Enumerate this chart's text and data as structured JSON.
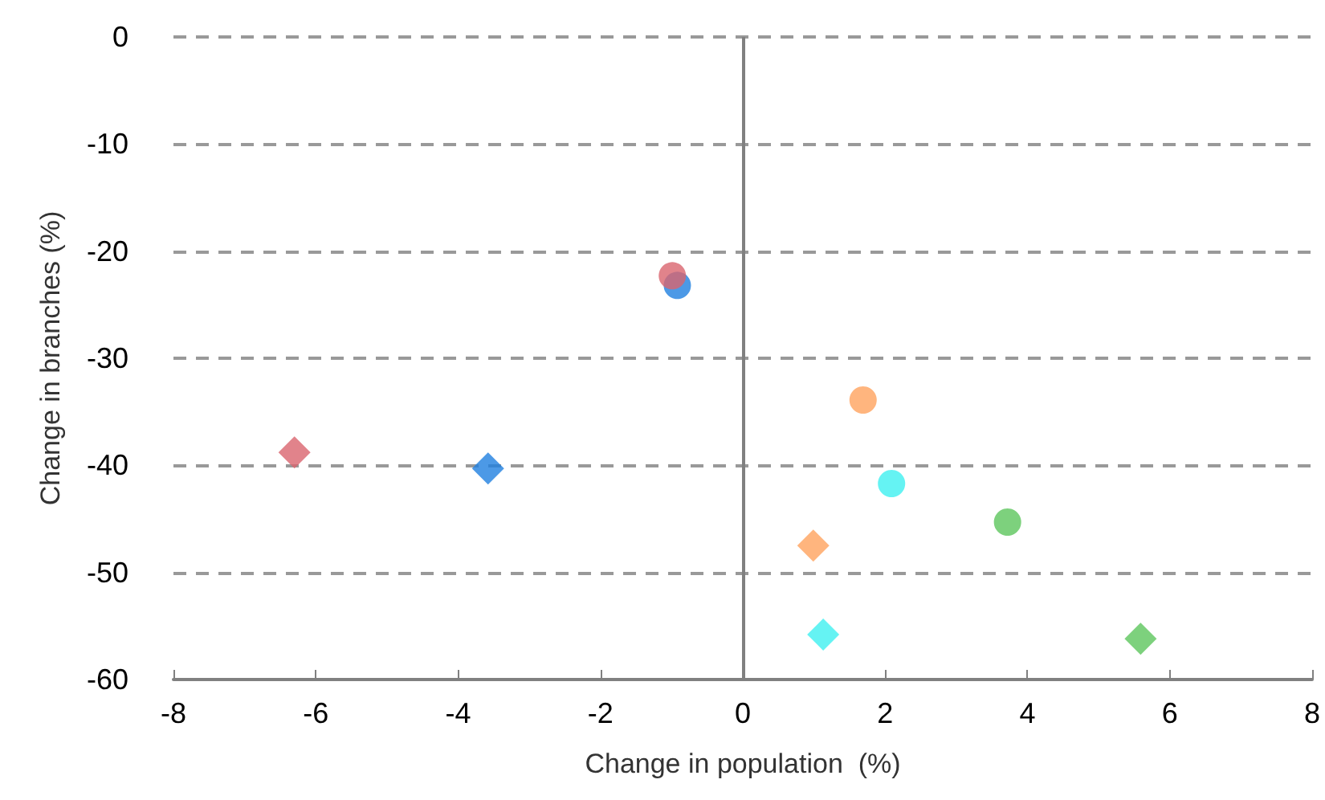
{
  "chart_data": {
    "type": "scatter",
    "xlabel": "Change in population  (%)",
    "ylabel": "Change in branches (%)",
    "xlim": [
      -8,
      8
    ],
    "xticks": [
      -8,
      -6,
      -4,
      -2,
      0,
      2,
      4,
      6,
      8
    ],
    "ylim": [
      -60,
      0
    ],
    "yticks": [
      -60,
      -50,
      -40,
      -30,
      -20,
      -10,
      0
    ],
    "grid": "y",
    "ref_lines": [
      {
        "axis": "x",
        "value": 0,
        "color": "#808080"
      }
    ],
    "series": [
      {
        "color": "#1f7fe0",
        "marker": "circle",
        "x": [
          -0.92
        ],
        "values": [
          -23.2
        ]
      },
      {
        "color": "#d9646e",
        "marker": "circle",
        "x": [
          -0.99
        ],
        "values": [
          -22.3
        ]
      },
      {
        "color": "#ffa25e",
        "marker": "circle",
        "x": [
          1.69
        ],
        "values": [
          -33.9
        ]
      },
      {
        "color": "#3ff0f0",
        "marker": "circle",
        "x": [
          2.09
        ],
        "values": [
          -41.7
        ]
      },
      {
        "color": "#5cc55c",
        "marker": "circle",
        "x": [
          3.72
        ],
        "values": [
          -45.3
        ]
      },
      {
        "color": "#d9646e",
        "marker": "diamond",
        "x": [
          -6.3
        ],
        "values": [
          -38.8
        ]
      },
      {
        "color": "#1f7fe0",
        "marker": "diamond",
        "x": [
          -3.58
        ],
        "values": [
          -40.3
        ]
      },
      {
        "color": "#ffa25e",
        "marker": "diamond",
        "x": [
          0.99
        ],
        "values": [
          -47.5
        ]
      },
      {
        "color": "#3ff0f0",
        "marker": "diamond",
        "x": [
          1.13
        ],
        "values": [
          -55.8
        ]
      },
      {
        "color": "#5cc55c",
        "marker": "diamond",
        "x": [
          5.59
        ],
        "values": [
          -56.2
        ]
      }
    ]
  }
}
